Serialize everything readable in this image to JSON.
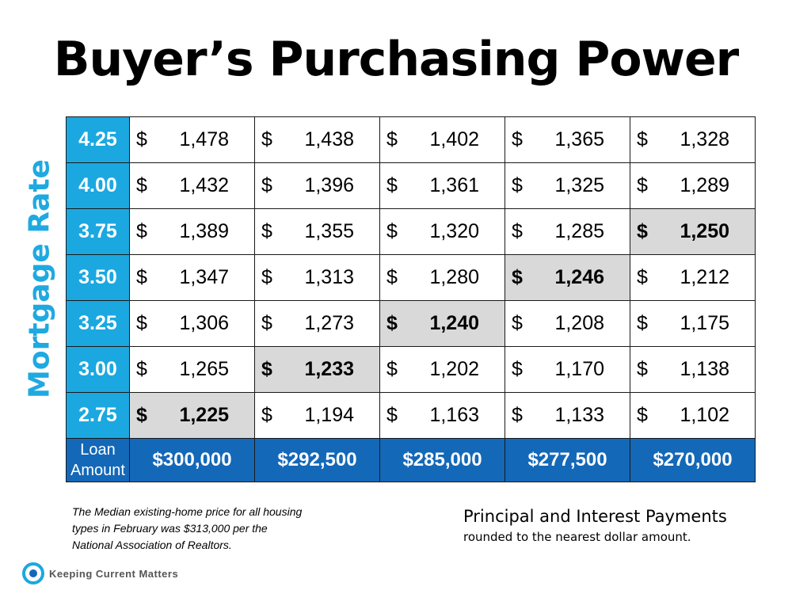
{
  "title": "Buyer’s Purchasing Power",
  "y_axis_label": "Mortgage Rate",
  "currency_symbol": "$",
  "rows": [
    {
      "rate": "4.25",
      "cells": [
        {
          "v": "1,478"
        },
        {
          "v": "1,438"
        },
        {
          "v": "1,402"
        },
        {
          "v": "1,365"
        },
        {
          "v": "1,328"
        }
      ]
    },
    {
      "rate": "4.00",
      "cells": [
        {
          "v": "1,432"
        },
        {
          "v": "1,396"
        },
        {
          "v": "1,361"
        },
        {
          "v": "1,325"
        },
        {
          "v": "1,289"
        }
      ]
    },
    {
      "rate": "3.75",
      "cells": [
        {
          "v": "1,389"
        },
        {
          "v": "1,355"
        },
        {
          "v": "1,320"
        },
        {
          "v": "1,285"
        },
        {
          "v": "1,250",
          "highlight": true
        }
      ]
    },
    {
      "rate": "3.50",
      "cells": [
        {
          "v": "1,347"
        },
        {
          "v": "1,313"
        },
        {
          "v": "1,280"
        },
        {
          "v": "1,246",
          "highlight": true
        },
        {
          "v": "1,212"
        }
      ]
    },
    {
      "rate": "3.25",
      "cells": [
        {
          "v": "1,306"
        },
        {
          "v": "1,273"
        },
        {
          "v": "1,240",
          "highlight": true
        },
        {
          "v": "1,208"
        },
        {
          "v": "1,175"
        }
      ]
    },
    {
      "rate": "3.00",
      "cells": [
        {
          "v": "1,265"
        },
        {
          "v": "1,233",
          "highlight": true
        },
        {
          "v": "1,202"
        },
        {
          "v": "1,170"
        },
        {
          "v": "1,138"
        }
      ]
    },
    {
      "rate": "2.75",
      "cells": [
        {
          "v": "1,225",
          "highlight": true
        },
        {
          "v": "1,194"
        },
        {
          "v": "1,163"
        },
        {
          "v": "1,133"
        },
        {
          "v": "1,102"
        }
      ]
    }
  ],
  "loan_row": {
    "label_line1": "Loan",
    "label_line2": "Amount",
    "amounts": [
      "$300,000",
      "$292,500",
      "$285,000",
      "$277,500",
      "$270,000"
    ]
  },
  "footnote": "The Median existing-home price for all housing types in February was $313,000 per the National Association of Realtors.",
  "payment_note_title": "Principal and Interest Payments",
  "payment_note_subtitle": "rounded to the nearest dollar amount.",
  "brand": "Keeping Current Matters",
  "colors": {
    "rate_cell": "#1ba8e0",
    "loan_row": "#1468b8",
    "highlight": "#d9d9d9",
    "axis_label": "#1fa9e1"
  }
}
